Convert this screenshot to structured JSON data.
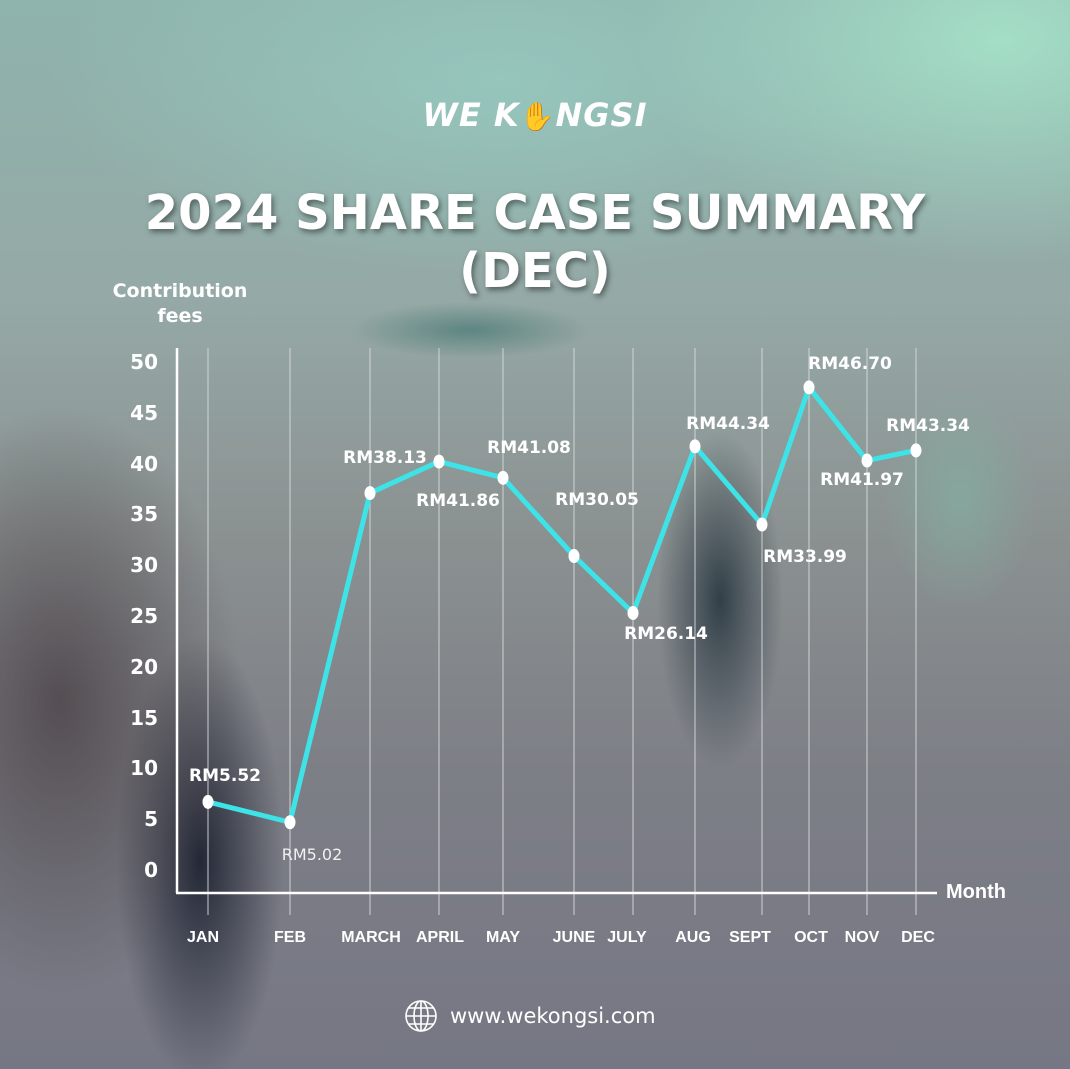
{
  "header": {
    "logo_text_left": "WE K",
    "logo_icon": "hand-heart-icon",
    "logo_text_right": "NGSI",
    "title_line1": "2024 SHARE CASE SUMMARY",
    "title_line2": "(DEC)"
  },
  "footer": {
    "icon": "globe-icon",
    "url": "www.wekongsi.com"
  },
  "colors": {
    "line": "#3de3e6",
    "marker": "#ffffff",
    "gridline": "#d8dcdc",
    "text": "#ffffff"
  },
  "chart_data": {
    "type": "line",
    "title": "2024 SHARE CASE SUMMARY (DEC)",
    "xlabel": "Month",
    "ylabel": "Contribution fees",
    "ylim": [
      0,
      50
    ],
    "yticks": [
      0,
      5,
      10,
      15,
      20,
      25,
      30,
      35,
      40,
      45,
      50
    ],
    "yticks_labels": [
      "0",
      "5",
      "10",
      "15",
      "20",
      "25",
      "30",
      "35",
      "40",
      "45",
      "50"
    ],
    "grid": "vertical lines only",
    "legend": "none",
    "categories": [
      "JAN",
      "FEB",
      "MARCH",
      "APRIL",
      "MAY",
      "JUNE",
      "JULY",
      "AUG",
      "SEPT",
      "OCT",
      "NOV",
      "DEC"
    ],
    "series": [
      {
        "name": "Contribution fees",
        "values": [
          5.52,
          5.02,
          38.13,
          41.86,
          41.08,
          30.05,
          26.14,
          44.34,
          33.99,
          46.7,
          41.97,
          43.34
        ],
        "plotted_values_estimate": [
          6.7,
          4.7,
          37.1,
          40.2,
          38.6,
          30.9,
          25.3,
          41.7,
          34.0,
          47.5,
          40.3,
          41.3
        ],
        "data_labels": [
          "RM5.52",
          "RM5.02",
          "RM38.13",
          "RM41.86",
          "RM41.08",
          "RM30.05",
          "RM26.14",
          "RM44.34",
          "RM33.99",
          "RM46.70",
          "RM41.97",
          "RM43.34"
        ]
      }
    ],
    "annotations": []
  }
}
